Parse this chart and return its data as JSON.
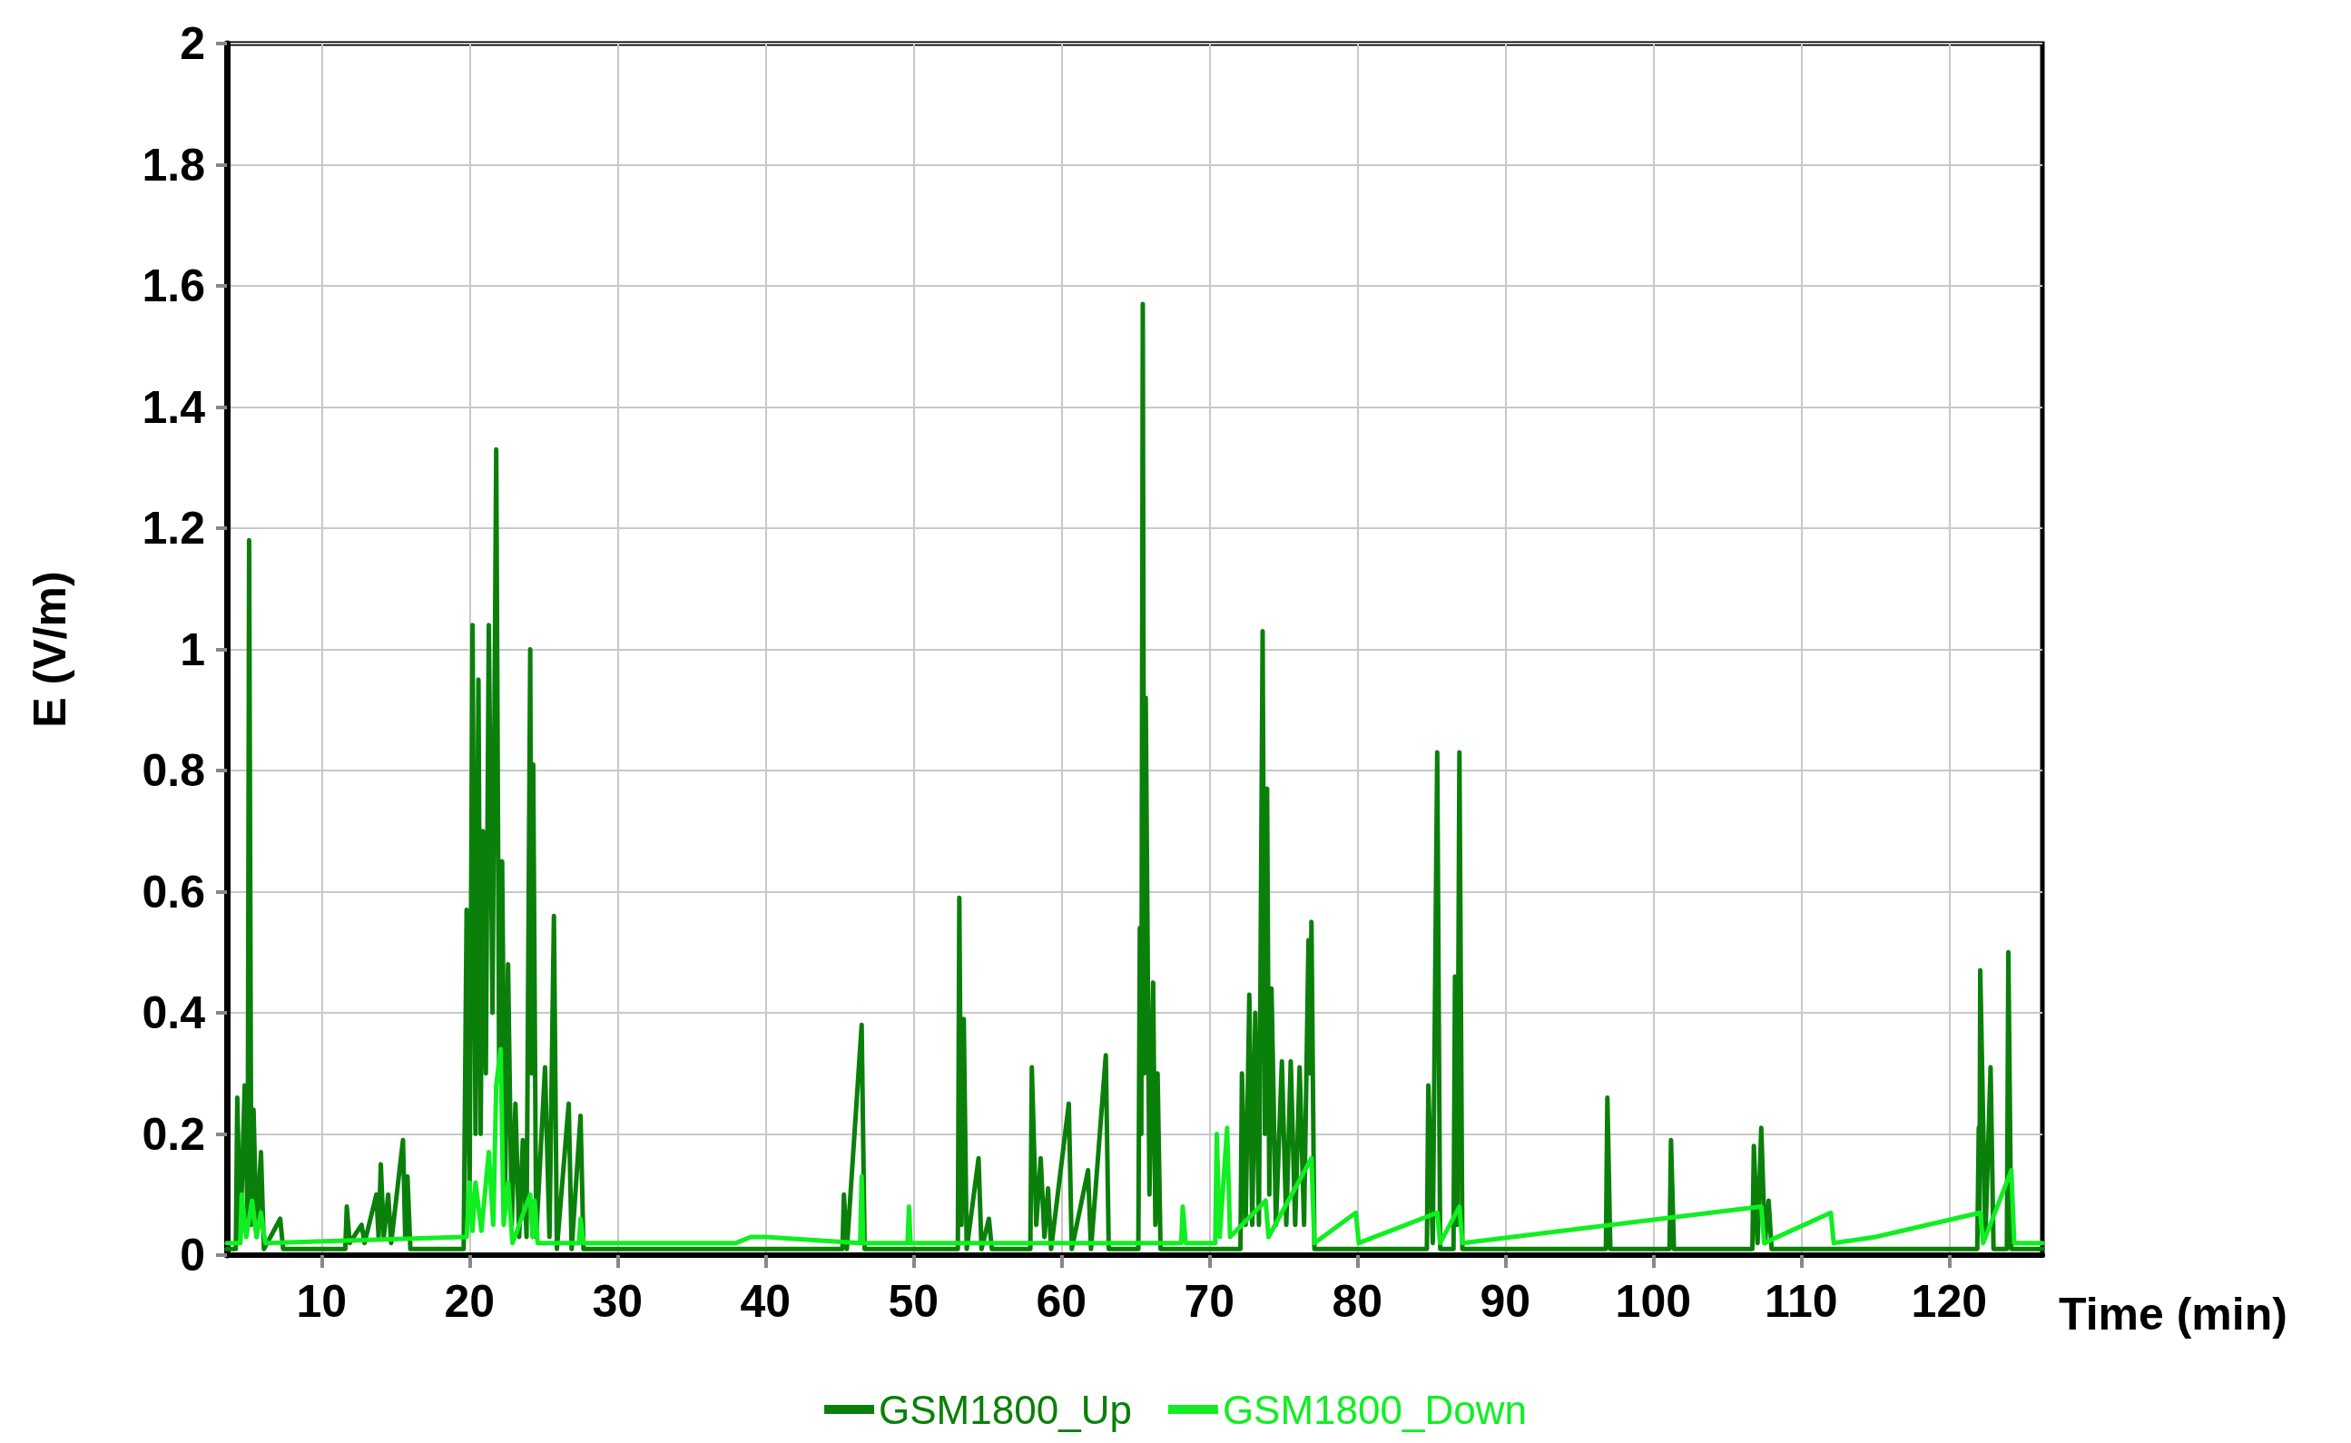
{
  "chart_data": {
    "type": "line",
    "xlabel": "Time (min)",
    "ylabel": "E (V/m)",
    "xlim": [
      3.6,
      126.3
    ],
    "xticks": [
      10,
      20,
      30,
      40,
      50,
      60,
      70,
      80,
      90,
      100,
      110,
      120
    ],
    "ylim": [
      0,
      2
    ],
    "yticks": [
      0,
      0.2,
      0.4,
      0.6,
      0.8,
      1,
      1.2,
      1.4,
      1.6,
      1.8,
      2
    ],
    "grid": true,
    "legend": "bottom",
    "marker": "none",
    "line_style": "solid",
    "series": [
      {
        "name": "GSM1800_Up",
        "color": "#0a800a",
        "x": [
          3.6,
          4.2,
          4.3,
          4.5,
          4.8,
          5.0,
          5.1,
          5.25,
          5.4,
          5.6,
          5.9,
          6.1,
          7.2,
          7.4,
          11.6,
          11.7,
          11.9,
          12.7,
          12.9,
          13.7,
          13.85,
          14.0,
          14.2,
          14.5,
          14.7,
          15.5,
          15.65,
          15.8,
          16.0,
          19.6,
          19.8,
          20.0,
          20.2,
          20.4,
          20.6,
          20.75,
          20.9,
          21.1,
          21.3,
          21.55,
          21.8,
          22.0,
          22.2,
          22.4,
          22.6,
          22.85,
          23.1,
          23.35,
          23.6,
          23.85,
          24.1,
          24.2,
          24.3,
          24.5,
          25.1,
          25.4,
          25.7,
          25.9,
          26.7,
          26.9,
          27.5,
          27.7,
          45.2,
          45.3,
          45.5,
          46.5,
          46.7,
          53.0,
          53.1,
          53.25,
          53.4,
          53.6,
          54.4,
          54.6,
          55.1,
          55.3,
          57.9,
          58.0,
          58.3,
          58.6,
          58.85,
          59.1,
          59.3,
          60.5,
          60.7,
          61.8,
          62.0,
          63.0,
          63.2,
          65.2,
          65.3,
          65.4,
          65.5,
          65.6,
          65.7,
          65.95,
          66.2,
          66.35,
          66.5,
          66.7,
          72.1,
          72.2,
          72.45,
          72.7,
          72.9,
          73.1,
          73.35,
          73.6,
          73.75,
          73.9,
          74.05,
          74.2,
          74.5,
          74.9,
          75.2,
          75.5,
          75.8,
          76.1,
          76.4,
          76.7,
          76.8,
          76.9,
          77.1,
          84.7,
          84.8,
          85.1,
          85.4,
          85.6,
          86.5,
          86.6,
          86.75,
          86.9,
          87.1,
          96.8,
          96.9,
          97.1,
          101.1,
          101.2,
          101.4,
          106.7,
          106.8,
          107.05,
          107.3,
          107.55,
          107.8,
          108.0,
          121.9,
          122.0,
          122.05,
          122.1,
          122.45,
          122.8,
          123.0,
          123.9,
          124.0,
          124.2,
          126.3
        ],
        "values": [
          0.01,
          0.01,
          0.26,
          0.02,
          0.28,
          0.05,
          1.18,
          0.05,
          0.24,
          0.03,
          0.17,
          0.01,
          0.06,
          0.01,
          0.01,
          0.08,
          0.02,
          0.05,
          0.02,
          0.1,
          0.03,
          0.15,
          0.03,
          0.1,
          0.02,
          0.19,
          0.03,
          0.13,
          0.01,
          0.01,
          0.57,
          0.1,
          1.04,
          0.2,
          0.95,
          0.2,
          0.7,
          0.3,
          1.04,
          0.4,
          1.33,
          0.3,
          0.65,
          0.1,
          0.48,
          0.05,
          0.25,
          0.03,
          0.19,
          0.03,
          1.0,
          0.3,
          0.81,
          0.03,
          0.31,
          0.03,
          0.56,
          0.01,
          0.25,
          0.01,
          0.23,
          0.01,
          0.01,
          0.1,
          0.01,
          0.38,
          0.01,
          0.01,
          0.59,
          0.05,
          0.39,
          0.01,
          0.16,
          0.01,
          0.06,
          0.01,
          0.01,
          0.31,
          0.05,
          0.16,
          0.03,
          0.11,
          0.01,
          0.25,
          0.01,
          0.14,
          0.01,
          0.33,
          0.01,
          0.01,
          0.54,
          0.2,
          1.57,
          0.3,
          0.92,
          0.1,
          0.45,
          0.05,
          0.3,
          0.01,
          0.01,
          0.3,
          0.05,
          0.43,
          0.05,
          0.4,
          0.05,
          1.03,
          0.2,
          0.77,
          0.1,
          0.44,
          0.05,
          0.32,
          0.05,
          0.32,
          0.05,
          0.31,
          0.05,
          0.52,
          0.3,
          0.55,
          0.01,
          0.01,
          0.28,
          0.02,
          0.83,
          0.01,
          0.01,
          0.46,
          0.05,
          0.83,
          0.01,
          0.01,
          0.26,
          0.01,
          0.01,
          0.19,
          0.01,
          0.01,
          0.18,
          0.02,
          0.21,
          0.02,
          0.09,
          0.01,
          0.01,
          0.21,
          0.05,
          0.47,
          0.03,
          0.31,
          0.01,
          0.01,
          0.5,
          0.01,
          0.01
        ]
      },
      {
        "name": "GSM1800_Down",
        "color": "#11ee22",
        "x": [
          3.6,
          4.5,
          4.6,
          4.9,
          5.3,
          5.6,
          5.9,
          6.2,
          19.8,
          20.0,
          20.2,
          20.4,
          20.8,
          21.3,
          21.6,
          21.8,
          22.1,
          22.3,
          22.6,
          22.9,
          24.1,
          24.25,
          24.4,
          24.6,
          27.4,
          27.5,
          27.7,
          38.0,
          39.0,
          40.0,
          46.4,
          46.5,
          46.6,
          49.6,
          49.7,
          49.8,
          68.1,
          68.2,
          68.4,
          70.4,
          70.5,
          70.7,
          71.2,
          71.4,
          73.8,
          74.0,
          76.9,
          77.1,
          79.9,
          80.1,
          85.4,
          85.6,
          86.9,
          87.1,
          107.3,
          107.5,
          112.0,
          112.2,
          115.0,
          122.1,
          122.3,
          124.2,
          124.4,
          126.3
        ],
        "values": [
          0.02,
          0.02,
          0.1,
          0.03,
          0.09,
          0.03,
          0.07,
          0.02,
          0.03,
          0.12,
          0.04,
          0.12,
          0.04,
          0.17,
          0.05,
          0.28,
          0.34,
          0.05,
          0.12,
          0.02,
          0.1,
          0.03,
          0.09,
          0.02,
          0.02,
          0.06,
          0.02,
          0.02,
          0.03,
          0.03,
          0.02,
          0.13,
          0.02,
          0.02,
          0.08,
          0.02,
          0.02,
          0.08,
          0.02,
          0.02,
          0.2,
          0.03,
          0.21,
          0.03,
          0.09,
          0.03,
          0.16,
          0.02,
          0.07,
          0.02,
          0.07,
          0.02,
          0.08,
          0.02,
          0.08,
          0.02,
          0.07,
          0.02,
          0.03,
          0.07,
          0.02,
          0.14,
          0.02,
          0.02
        ]
      }
    ]
  }
}
